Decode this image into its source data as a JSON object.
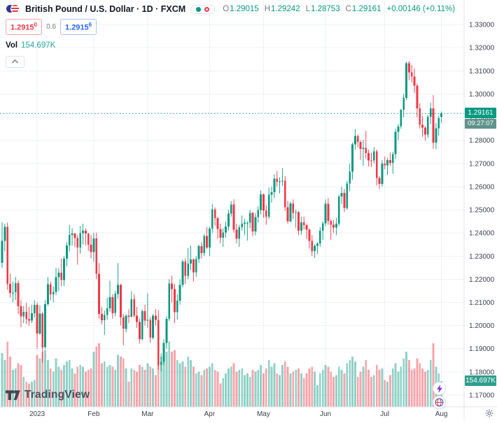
{
  "header": {
    "symbol_title": "British Pound / U.S. Dollar · 1D · FXCM",
    "ohlc": {
      "o_label": "O",
      "o_value": "1.29015",
      "h_label": "H",
      "h_value": "1.29242",
      "l_label": "L",
      "l_value": "1.28753",
      "c_label": "C",
      "c_value": "1.29161",
      "change": "+0.00146 (+0.11%)"
    },
    "bid_main": "1.2915",
    "bid_sup": "0",
    "spread": "0.6",
    "ask_main": "1.2915",
    "ask_sup": "6",
    "vol_label": "Vol",
    "vol_value": "154.697K"
  },
  "price_label": {
    "price": "1.29161",
    "countdown": "09:27:07"
  },
  "volume_axis_label": "154.697K",
  "footer": {
    "logo_text": "TradingView"
  },
  "ui_colors": {
    "up_green": "#089981",
    "down_red": "#f23645",
    "ask_blue": "#2962ff",
    "vol_teal": "#26a69a",
    "badge_green": "#089981",
    "countdown_teal": "#5f938c",
    "lightning_purple": "#7c3aed"
  },
  "chart_data": {
    "type": "candlestick",
    "title": "British Pound / U.S. Dollar",
    "symbol": "GBP/USD",
    "exchange": "FXCM",
    "interval": "1D",
    "last_price": 1.29161,
    "last_volume_k": 154.697,
    "legend_position": "top-left",
    "grid": true,
    "colors": {
      "up": "#089981",
      "down": "#f23645",
      "vol_up": "rgba(8,153,129,0.45)",
      "vol_down": "rgba(242,54,69,0.45)",
      "grid": "#eef1f7",
      "last_price_line": "#089981",
      "axis_border": "#e0e3eb"
    },
    "y_axis": {
      "min": 1.17,
      "max": 1.33,
      "tick_step": 0.01,
      "ticks": [
        "1.33000",
        "1.32000",
        "1.31000",
        "1.30000",
        "1.29000",
        "1.28000",
        "1.27000",
        "1.26000",
        "1.25000",
        "1.24000",
        "1.23000",
        "1.22000",
        "1.21000",
        "1.20000",
        "1.19000",
        "1.18000",
        "1.17000"
      ]
    },
    "x_axis": {
      "labels": [
        {
          "text": "2023",
          "index": 13
        },
        {
          "text": "Feb",
          "index": 34
        },
        {
          "text": "Mar",
          "index": 54
        },
        {
          "text": "Apr",
          "index": 77
        },
        {
          "text": "May",
          "index": 97
        },
        {
          "text": "Jun",
          "index": 120
        },
        {
          "text": "Jul",
          "index": 142
        },
        {
          "text": "Aug",
          "index": 163
        }
      ]
    },
    "candles": [
      [
        1.227,
        1.2446,
        1.225,
        1.2365,
        320
      ],
      [
        1.2365,
        1.244,
        1.232,
        1.2426,
        280
      ],
      [
        1.2426,
        1.2445,
        1.2155,
        1.218,
        390
      ],
      [
        1.218,
        1.2225,
        1.212,
        1.2141,
        300
      ],
      [
        1.2141,
        1.219,
        1.21,
        1.2143,
        220
      ],
      [
        1.2143,
        1.221,
        1.211,
        1.2183,
        230
      ],
      [
        1.2183,
        1.2195,
        1.205,
        1.2084,
        260
      ],
      [
        1.2084,
        1.211,
        1.1993,
        1.204,
        250
      ],
      [
        1.204,
        1.2085,
        1.201,
        1.206,
        180
      ],
      [
        1.206,
        1.2098,
        1.2007,
        1.2027,
        150
      ],
      [
        1.2027,
        1.208,
        1.2,
        1.2021,
        140
      ],
      [
        1.2021,
        1.209,
        1.201,
        1.2053,
        150
      ],
      [
        1.2053,
        1.211,
        1.2035,
        1.2089,
        160
      ],
      [
        1.2089,
        1.21,
        1.19,
        1.1966,
        310
      ],
      [
        1.1966,
        1.2087,
        1.196,
        1.2052,
        290
      ],
      [
        1.2052,
        1.206,
        1.1841,
        1.1906,
        330
      ],
      [
        1.1906,
        1.211,
        1.19,
        1.2093,
        340
      ],
      [
        1.2093,
        1.221,
        1.2085,
        1.2179,
        280
      ],
      [
        1.2179,
        1.219,
        1.211,
        1.2134,
        230
      ],
      [
        1.2134,
        1.217,
        1.21,
        1.2145,
        210
      ],
      [
        1.2145,
        1.225,
        1.2133,
        1.2209,
        290
      ],
      [
        1.2209,
        1.2248,
        1.215,
        1.2228,
        240
      ],
      [
        1.2228,
        1.229,
        1.217,
        1.2197,
        220
      ],
      [
        1.2197,
        1.23,
        1.217,
        1.2288,
        250
      ],
      [
        1.2288,
        1.236,
        1.2255,
        1.2346,
        270
      ],
      [
        1.2346,
        1.2435,
        1.232,
        1.2392,
        280
      ],
      [
        1.2392,
        1.242,
        1.2345,
        1.2397,
        230
      ],
      [
        1.2397,
        1.24,
        1.234,
        1.2377,
        200
      ],
      [
        1.2377,
        1.239,
        1.2263,
        1.2337,
        240
      ],
      [
        1.2337,
        1.243,
        1.231,
        1.2399,
        250
      ],
      [
        1.2399,
        1.244,
        1.235,
        1.241,
        240
      ],
      [
        1.241,
        1.242,
        1.2345,
        1.2397,
        210
      ],
      [
        1.2397,
        1.24,
        1.2322,
        1.2349,
        220
      ],
      [
        1.2349,
        1.239,
        1.229,
        1.2318,
        230
      ],
      [
        1.2318,
        1.24,
        1.2275,
        1.2376,
        330
      ],
      [
        1.2376,
        1.2402,
        1.22,
        1.2224,
        360
      ],
      [
        1.2224,
        1.227,
        1.203,
        1.205,
        380
      ],
      [
        1.205,
        1.208,
        1.2005,
        1.2023,
        260
      ],
      [
        1.2023,
        1.2065,
        1.196,
        1.2046,
        270
      ],
      [
        1.2046,
        1.212,
        1.2025,
        1.2074,
        240
      ],
      [
        1.2074,
        1.2194,
        1.206,
        1.2123,
        250
      ],
      [
        1.2123,
        1.2135,
        1.203,
        1.2054,
        240
      ],
      [
        1.2054,
        1.215,
        1.204,
        1.2137,
        220
      ],
      [
        1.2137,
        1.227,
        1.2115,
        1.2175,
        310
      ],
      [
        1.2175,
        1.218,
        1.2,
        1.2035,
        300
      ],
      [
        1.2035,
        1.205,
        1.1915,
        1.1986,
        290
      ],
      [
        1.1986,
        1.205,
        1.197,
        1.2043,
        230
      ],
      [
        1.2043,
        1.207,
        1.201,
        1.2038,
        150
      ],
      [
        1.2038,
        1.2148,
        1.2035,
        1.2114,
        230
      ],
      [
        1.2114,
        1.2135,
        1.2035,
        1.2043,
        220
      ],
      [
        1.2043,
        1.208,
        1.199,
        1.2016,
        210
      ],
      [
        1.2016,
        1.203,
        1.1923,
        1.1942,
        250
      ],
      [
        1.1942,
        1.207,
        1.1935,
        1.2062,
        240
      ],
      [
        1.2062,
        1.209,
        1.2,
        1.2021,
        220
      ],
      [
        1.2021,
        1.214,
        1.199,
        1.2025,
        260
      ],
      [
        1.2025,
        1.2035,
        1.1925,
        1.1948,
        240
      ],
      [
        1.1948,
        1.205,
        1.194,
        1.2042,
        230
      ],
      [
        1.2042,
        1.207,
        1.2,
        1.2024,
        190
      ],
      [
        1.2024,
        1.2065,
        1.181,
        1.1829,
        340
      ],
      [
        1.1829,
        1.188,
        1.1803,
        1.1843,
        300
      ],
      [
        1.1843,
        1.194,
        1.183,
        1.1925,
        290
      ],
      [
        1.1925,
        1.204,
        1.19,
        1.2029,
        330
      ],
      [
        1.2029,
        1.22,
        1.202,
        1.2182,
        390
      ],
      [
        1.2182,
        1.2215,
        1.21,
        1.2157,
        330
      ],
      [
        1.2157,
        1.218,
        1.201,
        1.2057,
        340
      ],
      [
        1.2057,
        1.2135,
        1.2025,
        1.2108,
        280
      ],
      [
        1.2108,
        1.22,
        1.209,
        1.2175,
        260
      ],
      [
        1.2175,
        1.2285,
        1.2165,
        1.2277,
        270
      ],
      [
        1.2277,
        1.229,
        1.218,
        1.2215,
        240
      ],
      [
        1.2215,
        1.2335,
        1.22,
        1.2267,
        300
      ],
      [
        1.2267,
        1.2345,
        1.224,
        1.2285,
        280
      ],
      [
        1.2285,
        1.229,
        1.219,
        1.223,
        240
      ],
      [
        1.223,
        1.23,
        1.221,
        1.2287,
        200
      ],
      [
        1.2287,
        1.235,
        1.227,
        1.2343,
        210
      ],
      [
        1.2343,
        1.236,
        1.229,
        1.2313,
        190
      ],
      [
        1.2313,
        1.2395,
        1.23,
        1.2387,
        220
      ],
      [
        1.2387,
        1.2425,
        1.233,
        1.2337,
        230
      ],
      [
        1.2337,
        1.2425,
        1.23,
        1.2418,
        240
      ],
      [
        1.2418,
        1.2525,
        1.24,
        1.2501,
        260
      ],
      [
        1.2501,
        1.251,
        1.243,
        1.2464,
        220
      ],
      [
        1.2464,
        1.247,
        1.2375,
        1.2417,
        210
      ],
      [
        1.2417,
        1.244,
        1.2355,
        1.238,
        140
      ],
      [
        1.238,
        1.242,
        1.234,
        1.2402,
        170
      ],
      [
        1.2402,
        1.245,
        1.238,
        1.2427,
        200
      ],
      [
        1.2427,
        1.25,
        1.241,
        1.2484,
        230
      ],
      [
        1.2484,
        1.2537,
        1.247,
        1.2523,
        240
      ],
      [
        1.2523,
        1.2546,
        1.24,
        1.2414,
        260
      ],
      [
        1.2414,
        1.244,
        1.2355,
        1.2375,
        210
      ],
      [
        1.2375,
        1.2435,
        1.234,
        1.2425,
        220
      ],
      [
        1.2425,
        1.2475,
        1.241,
        1.244,
        230
      ],
      [
        1.244,
        1.246,
        1.239,
        1.2444,
        190
      ],
      [
        1.2444,
        1.245,
        1.2367,
        1.2444,
        200
      ],
      [
        1.2444,
        1.25,
        1.242,
        1.2487,
        180
      ],
      [
        1.2487,
        1.249,
        1.2386,
        1.2407,
        220
      ],
      [
        1.2407,
        1.2485,
        1.239,
        1.2468,
        210
      ],
      [
        1.2468,
        1.2515,
        1.2445,
        1.2499,
        220
      ],
      [
        1.2499,
        1.2583,
        1.248,
        1.2566,
        250
      ],
      [
        1.2566,
        1.257,
        1.2465,
        1.2497,
        200
      ],
      [
        1.2497,
        1.252,
        1.2435,
        1.247,
        230
      ],
      [
        1.247,
        1.2595,
        1.246,
        1.2565,
        280
      ],
      [
        1.2565,
        1.26,
        1.253,
        1.2575,
        240
      ],
      [
        1.2575,
        1.2653,
        1.255,
        1.2634,
        260
      ],
      [
        1.2634,
        1.2668,
        1.26,
        1.2621,
        200
      ],
      [
        1.2621,
        1.264,
        1.257,
        1.2622,
        190
      ],
      [
        1.2622,
        1.268,
        1.2603,
        1.2625,
        250
      ],
      [
        1.2625,
        1.2645,
        1.2495,
        1.251,
        270
      ],
      [
        1.251,
        1.2538,
        1.244,
        1.245,
        240
      ],
      [
        1.245,
        1.2535,
        1.2445,
        1.2527,
        200
      ],
      [
        1.2527,
        1.2545,
        1.246,
        1.2487,
        210
      ],
      [
        1.2487,
        1.25,
        1.2422,
        1.2489,
        220
      ],
      [
        1.2489,
        1.2495,
        1.239,
        1.2409,
        230
      ],
      [
        1.2409,
        1.247,
        1.2392,
        1.2446,
        200
      ],
      [
        1.2446,
        1.247,
        1.2415,
        1.2434,
        170
      ],
      [
        1.2434,
        1.244,
        1.2373,
        1.2414,
        200
      ],
      [
        1.2414,
        1.242,
        1.2332,
        1.2366,
        230
      ],
      [
        1.2366,
        1.239,
        1.23,
        1.2321,
        240
      ],
      [
        1.2321,
        1.235,
        1.2292,
        1.2345,
        210
      ],
      [
        1.2345,
        1.236,
        1.2308,
        1.2354,
        130
      ],
      [
        1.2354,
        1.2425,
        1.234,
        1.241,
        200
      ],
      [
        1.241,
        1.245,
        1.237,
        1.2441,
        220
      ],
      [
        1.2441,
        1.2545,
        1.243,
        1.2525,
        250
      ],
      [
        1.2525,
        1.255,
        1.2435,
        1.2451,
        240
      ],
      [
        1.2451,
        1.2458,
        1.2369,
        1.2435,
        210
      ],
      [
        1.2435,
        1.2455,
        1.24,
        1.2423,
        180
      ],
      [
        1.2423,
        1.2465,
        1.239,
        1.244,
        190
      ],
      [
        1.244,
        1.2565,
        1.243,
        1.2558,
        240
      ],
      [
        1.2558,
        1.26,
        1.2525,
        1.2573,
        220
      ],
      [
        1.2573,
        1.259,
        1.249,
        1.2508,
        200
      ],
      [
        1.2508,
        1.2625,
        1.25,
        1.2613,
        260
      ],
      [
        1.2613,
        1.27,
        1.258,
        1.2665,
        280
      ],
      [
        1.2665,
        1.279,
        1.263,
        1.2783,
        300
      ],
      [
        1.2783,
        1.2848,
        1.276,
        1.2818,
        270
      ],
      [
        1.2818,
        1.2825,
        1.277,
        1.2793,
        180
      ],
      [
        1.2793,
        1.28,
        1.2715,
        1.2763,
        210
      ],
      [
        1.2763,
        1.2802,
        1.269,
        1.2767,
        240
      ],
      [
        1.2767,
        1.2841,
        1.272,
        1.2745,
        280
      ],
      [
        1.2745,
        1.276,
        1.2687,
        1.2713,
        220
      ],
      [
        1.2713,
        1.2745,
        1.2685,
        1.2712,
        180
      ],
      [
        1.2712,
        1.277,
        1.27,
        1.2752,
        190
      ],
      [
        1.2752,
        1.276,
        1.2605,
        1.2637,
        250
      ],
      [
        1.2637,
        1.2645,
        1.259,
        1.2612,
        220
      ],
      [
        1.2612,
        1.2715,
        1.26,
        1.27,
        230
      ],
      [
        1.27,
        1.273,
        1.2675,
        1.2692,
        160
      ],
      [
        1.2692,
        1.2725,
        1.265,
        1.2714,
        150
      ],
      [
        1.2714,
        1.2747,
        1.269,
        1.2702,
        190
      ],
      [
        1.2702,
        1.275,
        1.2655,
        1.274,
        230
      ],
      [
        1.274,
        1.285,
        1.272,
        1.2837,
        260
      ],
      [
        1.2837,
        1.287,
        1.28,
        1.286,
        210
      ],
      [
        1.286,
        1.2935,
        1.285,
        1.2932,
        240
      ],
      [
        1.2932,
        1.3,
        1.29,
        1.2983,
        290
      ],
      [
        1.2983,
        1.314,
        1.2975,
        1.3133,
        330
      ],
      [
        1.3133,
        1.3142,
        1.306,
        1.3093,
        280
      ],
      [
        1.3093,
        1.3125,
        1.305,
        1.3075,
        220
      ],
      [
        1.3075,
        1.311,
        1.3005,
        1.3036,
        230
      ],
      [
        1.3036,
        1.3045,
        1.29,
        1.2938,
        290
      ],
      [
        1.2938,
        1.296,
        1.285,
        1.2867,
        260
      ],
      [
        1.2867,
        1.2905,
        1.2815,
        1.2854,
        230
      ],
      [
        1.2854,
        1.286,
        1.2798,
        1.2824,
        210
      ],
      [
        1.2824,
        1.291,
        1.281,
        1.2902,
        220
      ],
      [
        1.2902,
        1.2962,
        1.287,
        1.2938,
        280
      ],
      [
        1.2938,
        1.2995,
        1.2763,
        1.279,
        380
      ],
      [
        1.279,
        1.2874,
        1.2762,
        1.2851,
        240
      ],
      [
        1.2851,
        1.2905,
        1.282,
        1.2896,
        200
      ],
      [
        1.29015,
        1.29242,
        1.28753,
        1.29161,
        155
      ]
    ]
  }
}
